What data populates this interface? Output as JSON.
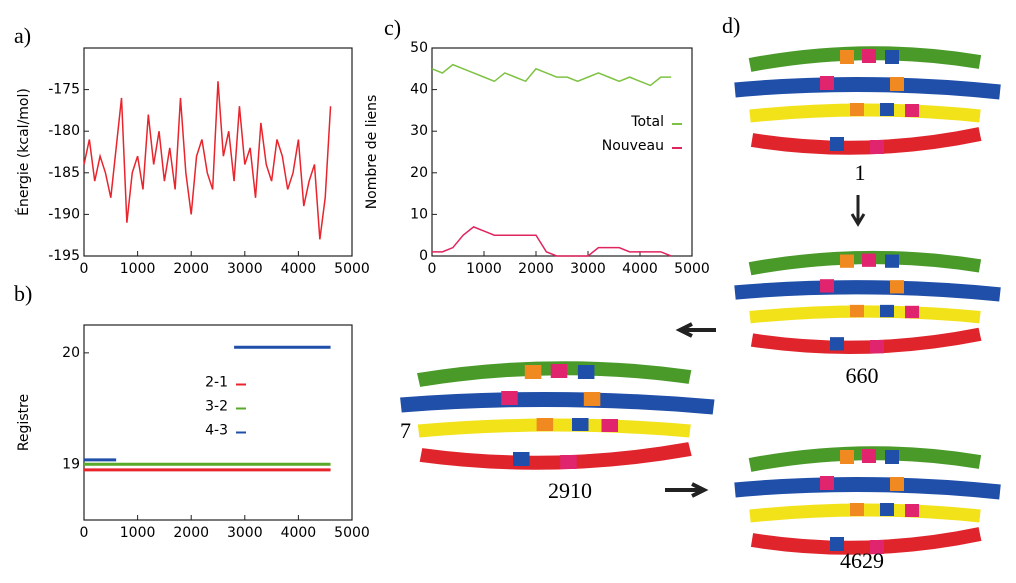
{
  "chart_data": [
    {
      "type": "line",
      "panel": "a)",
      "ylabel": "Énergie (kcal/mol)",
      "xlim": [
        0,
        5000
      ],
      "xticks": [
        0,
        1000,
        2000,
        3000,
        4000,
        5000
      ],
      "ylim": [
        -195,
        -170
      ],
      "yticks": [
        -195,
        -190,
        -185,
        -180,
        -175
      ],
      "series": [
        {
          "color": "#e8242c",
          "x": [
            0,
            100,
            200,
            300,
            400,
            500,
            600,
            700,
            800,
            900,
            1000,
            1100,
            1200,
            1300,
            1400,
            1500,
            1600,
            1700,
            1800,
            1900,
            2000,
            2100,
            2200,
            2300,
            2400,
            2500,
            2600,
            2700,
            2800,
            2900,
            3000,
            3100,
            3200,
            3300,
            3400,
            3500,
            3600,
            3700,
            3800,
            3900,
            4000,
            4100,
            4200,
            4300,
            4400,
            4500,
            4600
          ],
          "values": [
            -184,
            -181,
            -186,
            -183,
            -185,
            -188,
            -182,
            -176,
            -191,
            -185,
            -183,
            -187,
            -178,
            -184,
            -180,
            -186,
            -182,
            -187,
            -176,
            -185,
            -190,
            -183,
            -181,
            -185,
            -187,
            -174,
            -183,
            -180,
            -186,
            -177,
            -184,
            -182,
            -188,
            -179,
            -184,
            -186,
            -181,
            -183,
            -187,
            -185,
            -181,
            -189,
            -186,
            -184,
            -193,
            -188,
            -177
          ]
        }
      ]
    },
    {
      "type": "line",
      "panel": "b)",
      "ylabel": "Registre",
      "xlim": [
        0,
        5000
      ],
      "xticks": [
        0,
        1000,
        2000,
        3000,
        4000,
        5000
      ],
      "ylim": [
        18.5,
        20.25
      ],
      "yticks": [
        19,
        20
      ],
      "legend": "center",
      "series": [
        {
          "name": "2-1",
          "color": "#e8242c",
          "x": [
            0,
            4600
          ],
          "values": [
            18.95,
            18.95
          ]
        },
        {
          "name": "3-2",
          "color": "#5aaa2a",
          "x": [
            0,
            4600
          ],
          "values": [
            19.0,
            19.0
          ]
        },
        {
          "name": "4-3",
          "color": "#1f4fa8",
          "x": [
            0,
            600,
            700,
            2800,
            4600
          ],
          "values": [
            19.04,
            19.04,
            null,
            20.05,
            20.05
          ]
        }
      ]
    },
    {
      "type": "line",
      "panel": "c)",
      "ylabel": "Nombre de liens",
      "xlim": [
        0,
        5000
      ],
      "xticks": [
        0,
        1000,
        2000,
        3000,
        4000,
        5000
      ],
      "ylim": [
        0,
        50
      ],
      "yticks": [
        0,
        10,
        20,
        30,
        40,
        50
      ],
      "legend": "right",
      "series": [
        {
          "name": "Total",
          "color": "#7dc242",
          "x": [
            0,
            200,
            400,
            600,
            800,
            1000,
            1200,
            1400,
            1600,
            1800,
            2000,
            2200,
            2400,
            2600,
            2800,
            3000,
            3200,
            3400,
            3600,
            3800,
            4000,
            4200,
            4400,
            4600
          ],
          "values": [
            45,
            44,
            46,
            45,
            44,
            43,
            42,
            44,
            43,
            42,
            45,
            44,
            43,
            43,
            42,
            43,
            44,
            43,
            42,
            43,
            42,
            41,
            43,
            43
          ]
        },
        {
          "name": "Nouveau",
          "color": "#e0245e",
          "x": [
            0,
            200,
            400,
            600,
            800,
            1000,
            1200,
            1400,
            1600,
            1800,
            2000,
            2200,
            2400,
            2600,
            2800,
            3000,
            3200,
            3400,
            3600,
            3800,
            4000,
            4200,
            4400,
            4600
          ],
          "values": [
            1,
            1,
            2,
            5,
            7,
            6,
            5,
            5,
            5,
            5,
            5,
            1,
            0,
            0,
            0,
            0,
            2,
            2,
            2,
            1,
            1,
            1,
            1,
            0
          ]
        }
      ]
    }
  ],
  "diagram": {
    "label": "d)",
    "side_label": "7",
    "frames": [
      "1",
      "660",
      "2910",
      "4629"
    ]
  }
}
